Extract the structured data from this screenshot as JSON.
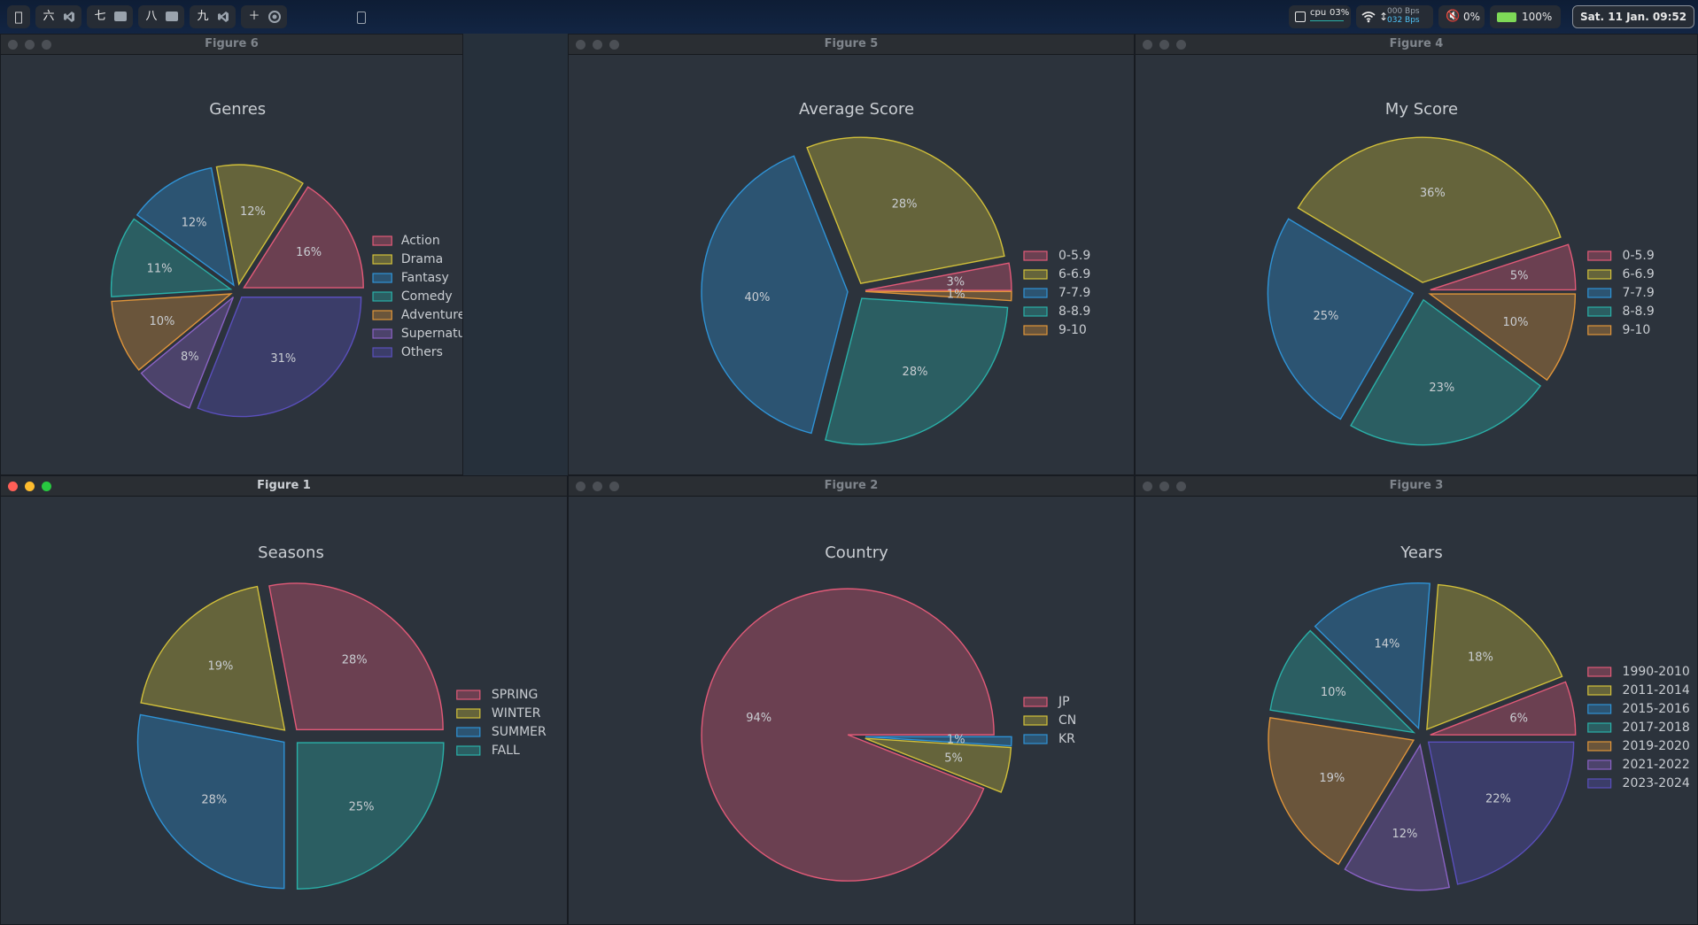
{
  "menubar": {
    "apple_icon": "apple-icon",
    "workspaces": [
      {
        "label": "六",
        "app_icon": "vscode-icon"
      },
      {
        "label": "七",
        "app_icon": "folder-icon"
      },
      {
        "label": "八",
        "app_icon": "folder-icon"
      },
      {
        "label": "九",
        "app_icon": "vscode-icon"
      },
      {
        "label": "＋",
        "app_icon": "chrome-icon"
      }
    ],
    "cpu": {
      "label": "cpu",
      "value": "03%"
    },
    "network": {
      "up": "000 Bps",
      "down": "032 Bps"
    },
    "volume": "0%",
    "battery": "100%",
    "datetime": "Sat. 11 Jan. 09:52"
  },
  "windows": [
    {
      "title": "Figure 6"
    },
    {
      "title": "Figure 5"
    },
    {
      "title": "Figure 4"
    },
    {
      "title": "Figure 1"
    },
    {
      "title": "Figure 2"
    },
    {
      "title": "Figure 3"
    }
  ],
  "colors": {
    "red": "#e25a78",
    "yellow": "#d2c03a",
    "blue": "#2f93d6",
    "teal": "#2ab0a8",
    "orange": "#e0953a",
    "purple": "#8a62c4",
    "indigo": "#5a4fbc"
  },
  "chart_data": [
    {
      "type": "pie",
      "title": "Genres",
      "labels": [
        "Action",
        "Drama",
        "Fantasy",
        "Comedy",
        "Adventure",
        "Supernatural",
        "Others"
      ],
      "values": [
        16,
        12,
        12,
        11,
        10,
        8,
        31
      ],
      "legend_position": "right"
    },
    {
      "type": "pie",
      "title": "Average Score",
      "labels": [
        "0-5.9",
        "6-6.9",
        "7-7.9",
        "8-8.9",
        "9-10"
      ],
      "values": [
        3,
        28,
        40,
        28,
        1
      ],
      "legend_position": "right"
    },
    {
      "type": "pie",
      "title": "My Score",
      "labels": [
        "0-5.9",
        "6-6.9",
        "7-7.9",
        "8-8.9",
        "9-10"
      ],
      "values": [
        5,
        36,
        25,
        23,
        10
      ],
      "legend_position": "right"
    },
    {
      "type": "pie",
      "title": "Seasons",
      "labels": [
        "SPRING",
        "WINTER",
        "SUMMER",
        "FALL"
      ],
      "values": [
        28,
        19,
        28,
        25
      ],
      "legend_position": "right"
    },
    {
      "type": "pie",
      "title": "Country",
      "labels": [
        "JP",
        "CN",
        "KR"
      ],
      "values": [
        94,
        5,
        1
      ],
      "legend_position": "right"
    },
    {
      "type": "pie",
      "title": "Years",
      "labels": [
        "1990-2010",
        "2011-2014",
        "2015-2016",
        "2017-2018",
        "2019-2020",
        "2021-2022",
        "2023-2024"
      ],
      "values": [
        6,
        18,
        14,
        10,
        19,
        12,
        22
      ],
      "legend_position": "right"
    }
  ]
}
